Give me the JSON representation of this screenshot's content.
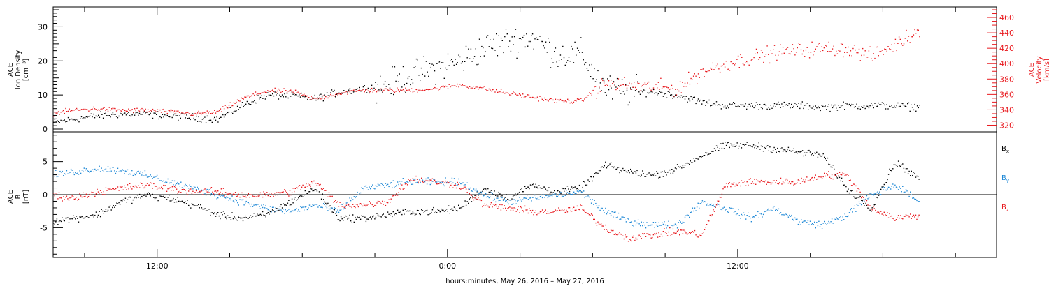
{
  "chart_data": [
    {
      "type": "scatter",
      "panel": "top",
      "ylabel_left": [
        "ACE",
        "Ion Density",
        "[cm⁻³]"
      ],
      "ylabel_right": [
        "ACE",
        "Velocity",
        "[km/s]"
      ],
      "ylim_left": [
        0,
        35
      ],
      "yticks_left": [
        "0",
        "10",
        "20",
        "30"
      ],
      "ylim_right": [
        315,
        470
      ],
      "yticks_right": [
        "320",
        "340",
        "360",
        "380",
        "400",
        "420",
        "440",
        "460"
      ],
      "x_hours_range": [
        7.7,
        46.7
      ],
      "series": [
        {
          "name": "Ion Density",
          "axis": "left",
          "color": "#000000",
          "x": [
            7.7,
            8.5,
            9.5,
            10.5,
            11.5,
            12.5,
            13.5,
            14.5,
            15.5,
            16.5,
            17.5,
            18.5,
            19.5,
            20.5,
            21.5,
            22.5,
            23.5,
            24.5,
            25.5,
            26.5,
            27.5,
            28.5,
            29.5,
            30.5,
            31.5,
            32.5,
            33.5,
            34.5,
            35.5,
            36.5,
            37.5,
            38.5,
            39.5,
            40.5,
            41.5,
            42.5,
            43.5
          ],
          "y": [
            2,
            3,
            4,
            4.5,
            4.5,
            4,
            3.5,
            3,
            7,
            10,
            10,
            9,
            11,
            12,
            13,
            16,
            18,
            20,
            24,
            26,
            27,
            22,
            22,
            12,
            11,
            11,
            10,
            8,
            7,
            7,
            7,
            7,
            6.5,
            7,
            7,
            7,
            6.5
          ]
        },
        {
          "name": "Velocity",
          "axis": "right",
          "color": "#e8191e",
          "x": [
            7.7,
            8.5,
            9.5,
            10.5,
            11.5,
            12.5,
            13.5,
            14.5,
            15.5,
            16.5,
            17.5,
            18.5,
            19.5,
            20.5,
            21.5,
            22.5,
            23.5,
            24.5,
            25.5,
            26.5,
            27.5,
            28.5,
            29.5,
            30.5,
            31.5,
            32.5,
            33.5,
            34.5,
            35.5,
            36.5,
            37.5,
            38.5,
            39.5,
            40.5,
            41.5,
            42.5,
            43.5
          ],
          "y": [
            336,
            340,
            342,
            340,
            340,
            338,
            335,
            338,
            355,
            365,
            365,
            354,
            362,
            366,
            366,
            366,
            368,
            373,
            368,
            362,
            357,
            352,
            352,
            375,
            372,
            370,
            368,
            390,
            400,
            408,
            415,
            418,
            420,
            420,
            410,
            425,
            445
          ]
        }
      ]
    },
    {
      "type": "scatter",
      "panel": "bottom",
      "ylabel_left": [
        "ACE",
        "B",
        "[nT]"
      ],
      "ylim": [
        -9.5,
        9.5
      ],
      "yticks": [
        "-5",
        "0",
        "5"
      ],
      "x_hours_range": [
        7.7,
        46.7
      ],
      "xticks": [
        "12:00",
        "0:00",
        "12:00"
      ],
      "xtick_hours": [
        12,
        24,
        36
      ],
      "xlabel": "hours:minutes, May 26, 2016 – May 27, 2016",
      "series": [
        {
          "name": "Bx",
          "color": "#000000",
          "x": [
            7.7,
            8.5,
            9.5,
            10.5,
            11.5,
            12.5,
            13.5,
            14.5,
            15.5,
            16.5,
            17.5,
            18.5,
            19.5,
            20.5,
            21.5,
            22.5,
            23.5,
            24.5,
            25.5,
            26.5,
            27.5,
            28.5,
            29.5,
            30.5,
            31.5,
            32.5,
            33.5,
            34.5,
            35.5,
            36.5,
            37.5,
            38.5,
            39.5,
            40.5,
            41.5,
            42.5,
            43.5
          ],
          "y": [
            -4,
            -3.5,
            -3,
            -1,
            0,
            -0.5,
            -1.5,
            -3,
            -3.5,
            -3,
            -1,
            1,
            -3.5,
            -3.5,
            -3,
            -2.5,
            -2.5,
            -2,
            1,
            -0.5,
            1.5,
            0.5,
            1,
            4.5,
            3.5,
            3,
            4,
            6,
            7.5,
            7.5,
            7,
            6.5,
            6,
            1,
            -2,
            5,
            2.5
          ]
        },
        {
          "name": "By",
          "color": "#1e88d6",
          "x": [
            7.7,
            8.5,
            9.5,
            10.5,
            11.5,
            12.5,
            13.5,
            14.5,
            15.5,
            16.5,
            17.5,
            18.5,
            19.5,
            20.5,
            21.5,
            22.5,
            23.5,
            24.5,
            25.5,
            26.5,
            27.5,
            28.5,
            29.5,
            30.5,
            31.5,
            32.5,
            33.5,
            34.5,
            35.5,
            36.5,
            37.5,
            38.5,
            39.5,
            40.5,
            41.5,
            42.5,
            43.5
          ],
          "y": [
            3,
            3.5,
            4,
            3.8,
            3,
            2,
            1,
            0,
            -1,
            -2,
            -2.5,
            -1.5,
            -2.5,
            1,
            1.5,
            2,
            2,
            2,
            0,
            -1,
            -0.5,
            0,
            0.5,
            -2.5,
            -4,
            -4.5,
            -4.5,
            -1,
            -2,
            -3.5,
            -2,
            -4,
            -4.5,
            -3,
            0,
            1.5,
            -1
          ]
        },
        {
          "name": "Bz",
          "color": "#e8191e",
          "x": [
            7.7,
            8.5,
            9.5,
            10.5,
            11.5,
            12.5,
            13.5,
            14.5,
            15.5,
            16.5,
            17.5,
            18.5,
            19.5,
            20.5,
            21.5,
            22.5,
            23.5,
            24.5,
            25.5,
            26.5,
            27.5,
            28.5,
            29.5,
            30.5,
            31.5,
            32.5,
            33.5,
            34.5,
            35.5,
            36.5,
            37.5,
            38.5,
            39.5,
            40.5,
            41.5,
            42.5,
            43.5
          ],
          "y": [
            0,
            -0.5,
            0.5,
            1,
            1.5,
            1,
            0.5,
            0.5,
            0,
            0,
            0.5,
            2,
            -1.5,
            -1.5,
            -1,
            2.5,
            2,
            1.5,
            -1.5,
            -2,
            -2.5,
            -2.5,
            -2,
            -5,
            -6.5,
            -6,
            -5.5,
            -6,
            1.5,
            2,
            2,
            2,
            3,
            3,
            -2,
            -3.5,
            -3
          ]
        }
      ],
      "legend": [
        {
          "label": "B",
          "sub": "x",
          "color": "#000000"
        },
        {
          "label": "B",
          "sub": "y",
          "color": "#1e88d6"
        },
        {
          "label": "B",
          "sub": "z",
          "color": "#e8191e"
        }
      ]
    }
  ]
}
